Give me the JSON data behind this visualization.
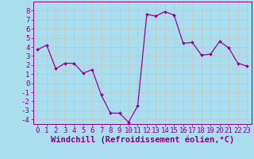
{
  "x": [
    0,
    1,
    2,
    3,
    4,
    5,
    6,
    7,
    8,
    9,
    10,
    11,
    12,
    13,
    14,
    15,
    16,
    17,
    18,
    19,
    20,
    21,
    22,
    23
  ],
  "y": [
    3.7,
    4.2,
    1.6,
    2.2,
    2.2,
    1.1,
    1.5,
    -1.3,
    -3.3,
    -3.3,
    -4.3,
    -2.5,
    7.6,
    7.4,
    7.9,
    7.5,
    4.4,
    4.5,
    3.1,
    3.2,
    4.6,
    3.9,
    2.2,
    1.9
  ],
  "line_color": "#990099",
  "marker_color": "#990099",
  "bg_color": "#aaddee",
  "grid_color": "#bbcccc",
  "xlabel": "Windchill (Refroidissement éolien,°C)",
  "xlim": [
    -0.5,
    23.5
  ],
  "ylim": [
    -4.5,
    9.0
  ],
  "yticks": [
    -4,
    -3,
    -2,
    -1,
    0,
    1,
    2,
    3,
    4,
    5,
    6,
    7,
    8
  ],
  "xticks": [
    0,
    1,
    2,
    3,
    4,
    5,
    6,
    7,
    8,
    9,
    10,
    11,
    12,
    13,
    14,
    15,
    16,
    17,
    18,
    19,
    20,
    21,
    22,
    23
  ],
  "font_color": "#880088",
  "tick_label_fontsize": 6.5,
  "xlabel_fontsize": 7.5
}
